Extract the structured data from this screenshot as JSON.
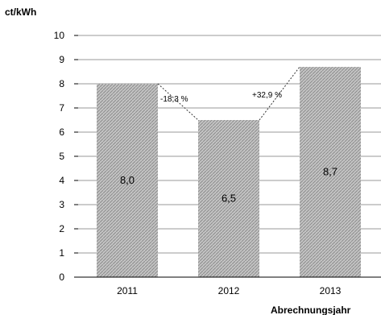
{
  "chart_data": {
    "type": "bar",
    "title": "",
    "unit_label": "ct/kWh",
    "xlabel": "Abrechnungsjahr",
    "ylabel": "",
    "ylim": [
      0,
      10
    ],
    "yticks": [
      "0",
      "1",
      "2",
      "3",
      "4",
      "5",
      "6",
      "7",
      "8",
      "9",
      "10"
    ],
    "grid": true,
    "categories": [
      "2011",
      "2012",
      "2013"
    ],
    "values": [
      8.0,
      6.5,
      8.7
    ],
    "value_labels": [
      "8,0",
      "6,5",
      "8,7"
    ],
    "annotations": [
      "-18,3 %",
      "+32,9 %"
    ],
    "bar_color": "#b0b0b0",
    "connector_style": "dotted"
  }
}
